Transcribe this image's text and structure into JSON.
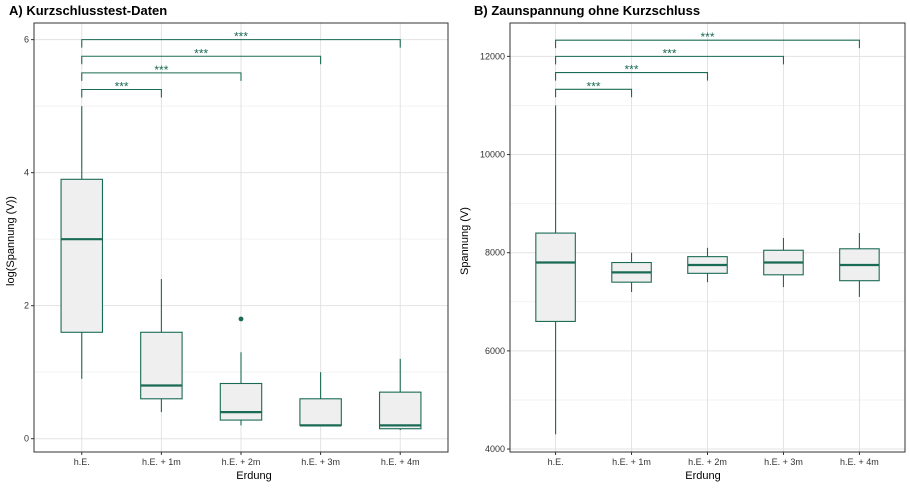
{
  "theme": {
    "box_stroke": "#1a6b55",
    "box_fill": "#efefef",
    "grid_major": "#e3e3e3",
    "grid_minor": "#f2f2f2",
    "panel_border": "#333333",
    "sig_color": "#1a6b55"
  },
  "chart_data": [
    {
      "type": "boxplot",
      "title": "A) Kurzschlusstest-Daten",
      "xlabel": "Erdung",
      "ylabel": "log(Spannung (V))",
      "categories": [
        "h.E.",
        "h.E. + 1m",
        "h.E. + 2m",
        "h.E. + 3m",
        "h.E. + 4m"
      ],
      "ylim": [
        -0.2,
        6.25
      ],
      "yticks": [
        0,
        2,
        4,
        6
      ],
      "grid": true,
      "boxes": [
        {
          "min": 0.9,
          "q1": 1.6,
          "median": 3.0,
          "q3": 3.9,
          "max": 5.0,
          "outliers": []
        },
        {
          "min": 0.4,
          "q1": 0.6,
          "median": 0.8,
          "q3": 1.6,
          "max": 2.4,
          "outliers": []
        },
        {
          "min": 0.2,
          "q1": 0.28,
          "median": 0.4,
          "q3": 0.83,
          "max": 1.3,
          "outliers": [
            1.8
          ]
        },
        {
          "min": 0.2,
          "q1": 0.2,
          "median": 0.2,
          "q3": 0.6,
          "max": 1.0,
          "outliers": []
        },
        {
          "min": 0.13,
          "q1": 0.15,
          "median": 0.2,
          "q3": 0.7,
          "max": 1.2,
          "outliers": []
        }
      ],
      "significance": [
        {
          "from": 0,
          "to": 1,
          "y": 5.25,
          "label": "***"
        },
        {
          "from": 0,
          "to": 2,
          "y": 5.5,
          "label": "***"
        },
        {
          "from": 0,
          "to": 3,
          "y": 5.75,
          "label": "***"
        },
        {
          "from": 0,
          "to": 4,
          "y": 6.0,
          "label": "***"
        }
      ]
    },
    {
      "type": "boxplot",
      "title": "B) Zaunspannung ohne Kurzschluss",
      "xlabel": "Erdung",
      "ylabel": "Spannung (V)",
      "categories": [
        "h.E.",
        "h.E. + 1m",
        "h.E. + 2m",
        "h.E. + 3m",
        "h.E. + 4m"
      ],
      "ylim": [
        3940,
        12680
      ],
      "yticks": [
        4000,
        6000,
        8000,
        10000,
        12000
      ],
      "grid": true,
      "boxes": [
        {
          "min": 4300,
          "q1": 6600,
          "median": 7800,
          "q3": 8400,
          "max": 11000,
          "outliers": []
        },
        {
          "min": 7200,
          "q1": 7400,
          "median": 7600,
          "q3": 7800,
          "max": 8000,
          "outliers": []
        },
        {
          "min": 7400,
          "q1": 7580,
          "median": 7750,
          "q3": 7920,
          "max": 8100,
          "outliers": []
        },
        {
          "min": 7300,
          "q1": 7550,
          "median": 7800,
          "q3": 8050,
          "max": 8300,
          "outliers": []
        },
        {
          "min": 7100,
          "q1": 7430,
          "median": 7750,
          "q3": 8080,
          "max": 8400,
          "outliers": []
        }
      ],
      "significance": [
        {
          "from": 0,
          "to": 1,
          "y": 11330,
          "label": "***"
        },
        {
          "from": 0,
          "to": 2,
          "y": 11670,
          "label": "***"
        },
        {
          "from": 0,
          "to": 3,
          "y": 12000,
          "label": "***"
        },
        {
          "from": 0,
          "to": 4,
          "y": 12330,
          "label": "***"
        }
      ]
    }
  ]
}
